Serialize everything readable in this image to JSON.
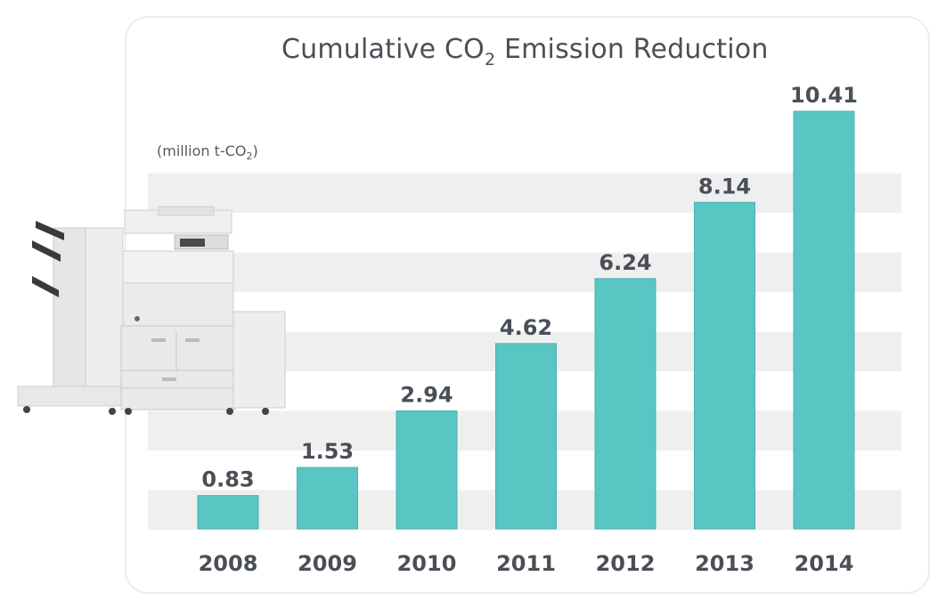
{
  "chart_data": {
    "type": "bar",
    "title_parts": {
      "main": "Cumulative CO",
      "sub": "2",
      "rest": " Emission Reduction"
    },
    "unit_parts": {
      "main": "(million t-CO",
      "sub": "2",
      "rest": ")"
    },
    "categories": [
      "2008",
      "2009",
      "2010",
      "2011",
      "2012",
      "2013",
      "2014"
    ],
    "values": [
      0.83,
      1.53,
      2.94,
      4.62,
      6.24,
      8.14,
      10.41
    ],
    "value_labels": [
      "0.83",
      "1.53",
      "2.94",
      "4.62",
      "6.24",
      "8.14",
      "10.41"
    ],
    "ylim": [
      0,
      10.41
    ],
    "grid": true,
    "legend": "none",
    "colors": {
      "bar": "#5ac6c4",
      "bar_edge": "#46b3b1",
      "text": "#4a4f57",
      "band": "#efefef"
    }
  },
  "illustration": {
    "icon": "printer-illustration"
  }
}
